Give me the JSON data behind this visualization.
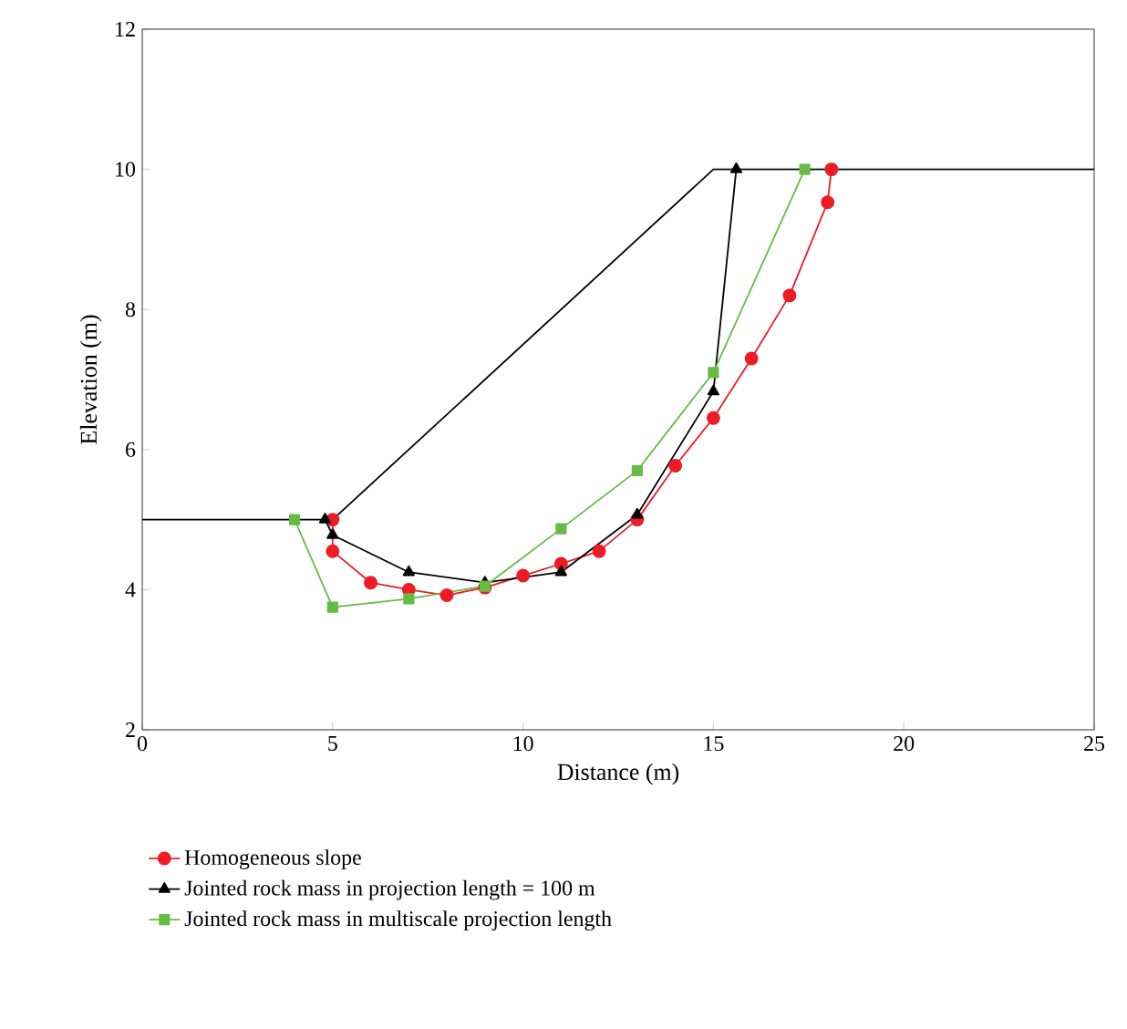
{
  "chart_data": {
    "type": "line",
    "xlabel": "Distance (m)",
    "ylabel": "Elevation (m)",
    "xlim": [
      0,
      25
    ],
    "ylim": [
      2,
      12
    ],
    "xticks": [
      0,
      5,
      10,
      15,
      20,
      25
    ],
    "yticks": [
      2,
      4,
      6,
      8,
      10,
      12
    ],
    "grid": false,
    "legend": "bottom",
    "line_style": "solid",
    "series": [
      {
        "color": "#000000",
        "marker": "none",
        "x": [
          0,
          5,
          15,
          25
        ],
        "values": [
          5,
          5,
          10,
          10
        ]
      },
      {
        "name": "Homogeneous slope",
        "color": "#ed1c24",
        "marker": "circle",
        "x": [
          5,
          5,
          6,
          7,
          8,
          9,
          10,
          11,
          12,
          13,
          14,
          15,
          16,
          17,
          18,
          18.1
        ],
        "values": [
          5,
          4.55,
          4.1,
          4.0,
          3.92,
          4.03,
          4.2,
          4.37,
          4.55,
          5.0,
          5.77,
          6.45,
          7.3,
          8.2,
          9.53,
          10
        ]
      },
      {
        "name": "Jointed rock mass in projection length = 100 m",
        "color": "#000000",
        "marker": "triangle",
        "x": [
          4.8,
          5,
          7,
          9,
          11,
          13,
          15,
          15.6
        ],
        "values": [
          5.0,
          4.78,
          4.25,
          4.1,
          4.25,
          5.07,
          6.83,
          10
        ]
      },
      {
        "name": "Jointed rock mass in multiscale projection length",
        "color": "#66bb44",
        "marker": "square",
        "x": [
          4,
          5,
          7,
          9,
          11,
          13,
          15,
          17.4
        ],
        "values": [
          5,
          3.75,
          3.87,
          4.05,
          4.87,
          5.7,
          7.1,
          10
        ]
      }
    ]
  }
}
